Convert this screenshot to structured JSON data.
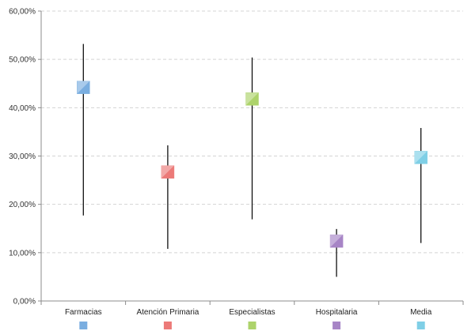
{
  "chart_data": {
    "type": "scatter",
    "subtype": "high-low-marker",
    "title": "",
    "xlabel": "",
    "ylabel": "",
    "categories": [
      "Farmacias",
      "Atención Primaria",
      "Especialistas",
      "Hospitalaria",
      "Media"
    ],
    "values": [
      44.2,
      26.7,
      41.8,
      12.4,
      29.7
    ],
    "high": [
      53.2,
      32.2,
      50.4,
      14.9,
      35.8
    ],
    "low": [
      17.7,
      10.8,
      16.9,
      5.0,
      12.0
    ],
    "colors": [
      "#7aaee0",
      "#ec7a78",
      "#add36b",
      "#a785c6",
      "#7fcfe6"
    ],
    "ylim": [
      0,
      60
    ],
    "yticks": [
      0,
      10,
      20,
      30,
      40,
      50,
      60
    ],
    "ytick_labels": [
      "0,00%",
      "10,00%",
      "20,00%",
      "30,00%",
      "40,00%",
      "50,00%",
      "60,00%"
    ],
    "grid": true,
    "grid_style": "dashed",
    "legend": "bottom",
    "legend_labels_shown": false
  }
}
